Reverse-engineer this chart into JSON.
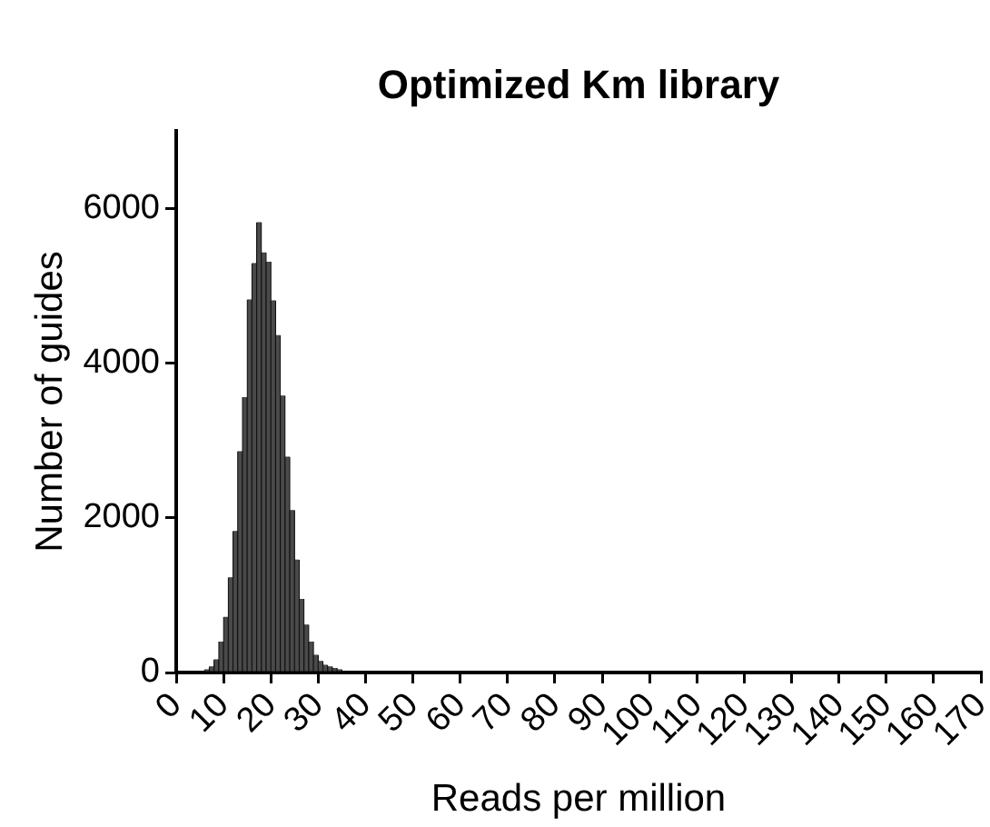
{
  "chart_data": {
    "type": "histogram",
    "title": "Optimized Km library",
    "xlabel": "Reads per million",
    "ylabel": "Number of guides",
    "bins": [
      6,
      7,
      8,
      9,
      10,
      11,
      12,
      13,
      14,
      15,
      16,
      17,
      18,
      19,
      20,
      21,
      22,
      23,
      24,
      25,
      26,
      27,
      28,
      29,
      30,
      31,
      32,
      33,
      34,
      35
    ],
    "values": [
      40,
      80,
      170,
      400,
      720,
      1230,
      1830,
      2860,
      3560,
      4820,
      5290,
      5820,
      5430,
      5310,
      4810,
      4360,
      3580,
      2790,
      2100,
      1460,
      950,
      620,
      400,
      230,
      150,
      100,
      80,
      60,
      40
    ],
    "color": "#4a4a4a",
    "xlim": [
      0,
      170
    ],
    "xticks": [
      0,
      10,
      20,
      30,
      40,
      50,
      60,
      70,
      80,
      90,
      100,
      110,
      120,
      130,
      140,
      150,
      160,
      170
    ],
    "ylim": [
      0,
      7000
    ],
    "yticks": [
      0,
      2000,
      4000,
      6000
    ]
  }
}
